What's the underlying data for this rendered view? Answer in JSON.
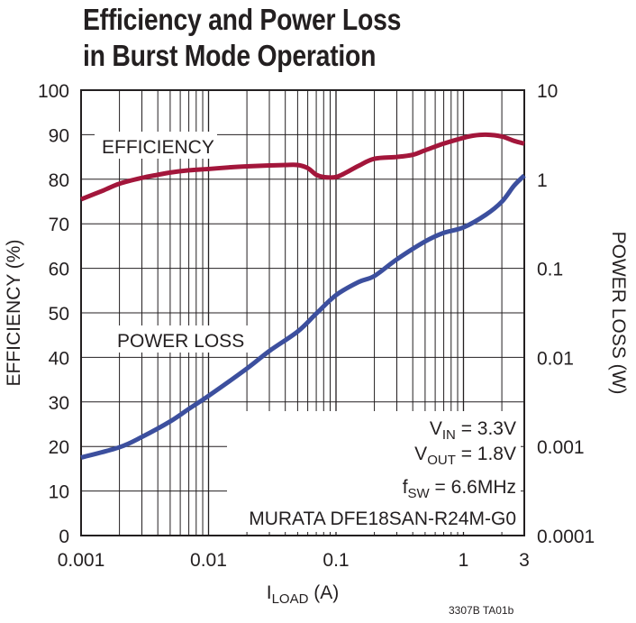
{
  "title_line1": "Efficiency and Power Loss",
  "title_line2": "in Burst Mode Operation",
  "figure_id": "3307B TA01b",
  "chart_data": {
    "type": "line",
    "title": "Efficiency and Power Loss in Burst Mode Operation",
    "x_axis": {
      "label_main": "I",
      "label_sub": "LOAD",
      "label_unit": " (A)",
      "scale": "log",
      "range": [
        0.001,
        3
      ],
      "ticks": [
        0.001,
        0.01,
        0.1,
        1,
        3
      ],
      "tick_labels": [
        "0.001",
        "0.01",
        "0.1",
        "1",
        "3"
      ]
    },
    "y_left": {
      "label": "EFFICIENCY (%)",
      "range": [
        0,
        100
      ],
      "ticks": [
        0,
        10,
        20,
        30,
        40,
        50,
        60,
        70,
        80,
        90,
        100
      ],
      "tick_labels": [
        "0",
        "10",
        "20",
        "30",
        "40",
        "50",
        "60",
        "70",
        "80",
        "90",
        "100"
      ]
    },
    "y_right": {
      "label": "POWER LOSS (W)",
      "scale": "log",
      "range": [
        0.0001,
        10
      ],
      "ticks": [
        0.0001,
        0.001,
        0.01,
        0.1,
        1,
        10
      ],
      "tick_labels": [
        "0.0001",
        "0.001",
        "0.01",
        "0.1",
        "1",
        "10"
      ]
    },
    "grid": true,
    "series": [
      {
        "name": "EFFICIENCY",
        "axis": "left",
        "color": "#a3163b",
        "points": [
          [
            0.001,
            75.5
          ],
          [
            0.0015,
            77.5
          ],
          [
            0.002,
            79
          ],
          [
            0.003,
            80.3
          ],
          [
            0.004,
            81
          ],
          [
            0.005,
            81.5
          ],
          [
            0.007,
            82
          ],
          [
            0.01,
            82.3
          ],
          [
            0.015,
            82.7
          ],
          [
            0.02,
            82.9
          ],
          [
            0.03,
            83.1
          ],
          [
            0.04,
            83.2
          ],
          [
            0.05,
            83.2
          ],
          [
            0.06,
            82.5
          ],
          [
            0.07,
            81
          ],
          [
            0.08,
            80.5
          ],
          [
            0.1,
            80.5
          ],
          [
            0.12,
            81.5
          ],
          [
            0.15,
            83
          ],
          [
            0.2,
            84.6
          ],
          [
            0.3,
            85
          ],
          [
            0.4,
            85.5
          ],
          [
            0.5,
            86.5
          ],
          [
            0.7,
            88
          ],
          [
            1,
            89.3
          ],
          [
            1.2,
            89.8
          ],
          [
            1.5,
            90
          ],
          [
            2,
            89.6
          ],
          [
            2.5,
            88.6
          ],
          [
            3,
            88
          ]
        ]
      },
      {
        "name": "POWER LOSS",
        "axis": "right",
        "color": "#3c4f9e",
        "points": [
          [
            0.001,
            0.00075
          ],
          [
            0.002,
            0.00098
          ],
          [
            0.003,
            0.00128
          ],
          [
            0.005,
            0.00191
          ],
          [
            0.007,
            0.00264
          ],
          [
            0.01,
            0.0037
          ],
          [
            0.02,
            0.0075
          ],
          [
            0.03,
            0.0118
          ],
          [
            0.05,
            0.0195
          ],
          [
            0.07,
            0.031
          ],
          [
            0.1,
            0.05
          ],
          [
            0.15,
            0.07
          ],
          [
            0.2,
            0.082
          ],
          [
            0.3,
            0.126
          ],
          [
            0.5,
            0.2
          ],
          [
            0.7,
            0.25
          ],
          [
            1,
            0.288
          ],
          [
            1.5,
            0.4
          ],
          [
            2,
            0.56
          ],
          [
            2.5,
            0.85
          ],
          [
            3,
            1.1
          ]
        ]
      }
    ],
    "annotations": {
      "efficiency_label": "EFFICIENCY",
      "power_loss_label": "POWER LOSS",
      "vin_main": "V",
      "vin_sub": "IN",
      "vin_val": " = 3.3V",
      "vout_main": "V",
      "vout_sub": "OUT",
      "vout_val": " = 1.8V",
      "fsw_main": "f",
      "fsw_sub": "SW",
      "fsw_val": " = 6.6MHz",
      "part": "MURATA DFE18SAN-R24M-G0"
    }
  }
}
